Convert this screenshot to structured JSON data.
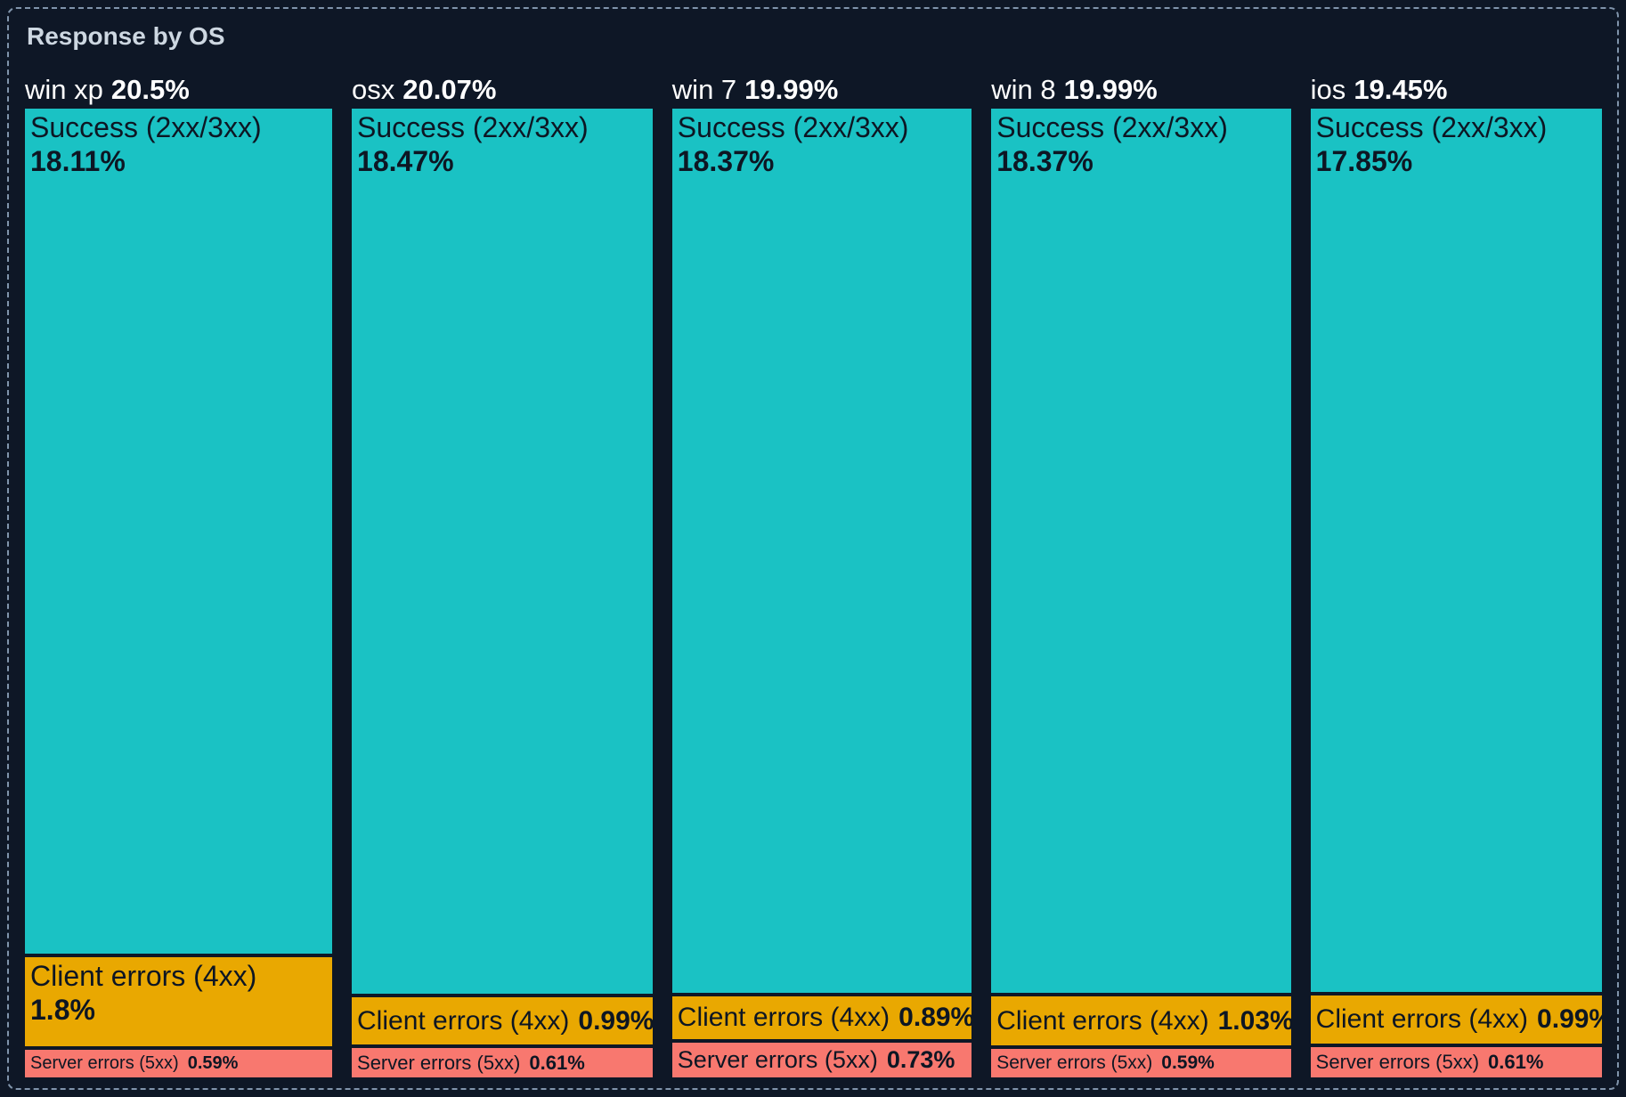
{
  "title": "Response by OS",
  "colors": {
    "background": "#0e1726",
    "border": "#8094ab",
    "title_text": "#cdd7e1",
    "header_text": "#ffffff",
    "label_text": "#0d1623",
    "success": "#1ac2c4",
    "client_errors": "#e9a801",
    "server_errors": "#f8786f"
  },
  "chart_data": {
    "type": "mosaic",
    "title": "Response by OS",
    "orientation": "columns normalized to equal height; column width proportional to OS total percent",
    "legend": "none (labels drawn inside tiles)",
    "columns": [
      {
        "name": "win xp",
        "percent": "20.5%",
        "total": 20.5,
        "segments": [
          {
            "kind": "success",
            "label": "Success (2xx/3xx)",
            "percent": "18.11%",
            "value": 18.11
          },
          {
            "kind": "client_errors",
            "label": "Client errors (4xx)",
            "percent": "1.8%",
            "value": 1.8
          },
          {
            "kind": "server_errors",
            "label": "Server errors (5xx)",
            "percent": "0.59%",
            "value": 0.59
          }
        ]
      },
      {
        "name": "osx",
        "percent": "20.07%",
        "total": 20.07,
        "segments": [
          {
            "kind": "success",
            "label": "Success (2xx/3xx)",
            "percent": "18.47%",
            "value": 18.47
          },
          {
            "kind": "client_errors",
            "label": "Client errors (4xx)",
            "percent": "0.99%",
            "value": 0.99
          },
          {
            "kind": "server_errors",
            "label": "Server errors (5xx)",
            "percent": "0.61%",
            "value": 0.61
          }
        ]
      },
      {
        "name": "win 7",
        "percent": "19.99%",
        "total": 19.99,
        "segments": [
          {
            "kind": "success",
            "label": "Success (2xx/3xx)",
            "percent": "18.37%",
            "value": 18.37
          },
          {
            "kind": "client_errors",
            "label": "Client errors (4xx)",
            "percent": "0.89%",
            "value": 0.89
          },
          {
            "kind": "server_errors",
            "label": "Server errors (5xx)",
            "percent": "0.73%",
            "value": 0.73
          }
        ]
      },
      {
        "name": "win 8",
        "percent": "19.99%",
        "total": 19.99,
        "segments": [
          {
            "kind": "success",
            "label": "Success (2xx/3xx)",
            "percent": "18.37%",
            "value": 18.37
          },
          {
            "kind": "client_errors",
            "label": "Client errors (4xx)",
            "percent": "1.03%",
            "value": 1.03
          },
          {
            "kind": "server_errors",
            "label": "Server errors (5xx)",
            "percent": "0.59%",
            "value": 0.59
          }
        ]
      },
      {
        "name": "ios",
        "percent": "19.45%",
        "total": 19.45,
        "segments": [
          {
            "kind": "success",
            "label": "Success (2xx/3xx)",
            "percent": "17.85%",
            "value": 17.85
          },
          {
            "kind": "client_errors",
            "label": "Client errors (4xx)",
            "percent": "0.99%",
            "value": 0.99
          },
          {
            "kind": "server_errors",
            "label": "Server errors (5xx)",
            "percent": "0.61%",
            "value": 0.61
          }
        ]
      }
    ]
  }
}
